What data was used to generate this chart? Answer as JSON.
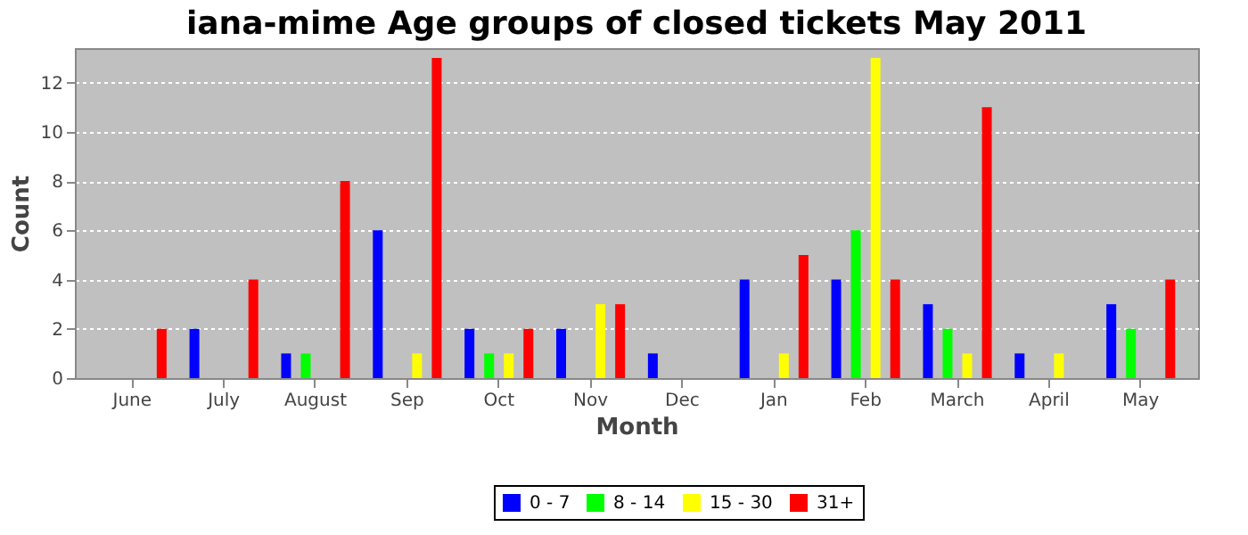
{
  "chart_data": {
    "type": "bar",
    "title": "iana-mime Age groups of closed tickets May 2011",
    "xlabel": "Month",
    "ylabel": "Count",
    "categories": [
      "June",
      "July",
      "August",
      "Sep",
      "Oct",
      "Nov",
      "Dec",
      "Jan",
      "Feb",
      "March",
      "April",
      "May"
    ],
    "series": [
      {
        "name": "0 - 7",
        "color": "#0000ff",
        "values": [
          0,
          2,
          1,
          6,
          2,
          2,
          1,
          4,
          4,
          3,
          1,
          3
        ]
      },
      {
        "name": "8 - 14",
        "color": "#00ff00",
        "values": [
          0,
          0,
          1,
          0,
          1,
          0,
          0,
          0,
          6,
          2,
          0,
          2
        ]
      },
      {
        "name": "15 - 30",
        "color": "#ffff00",
        "values": [
          0,
          0,
          0,
          1,
          1,
          3,
          0,
          1,
          13,
          1,
          1,
          0
        ]
      },
      {
        "name": "31+",
        "color": "#ff0000",
        "values": [
          2,
          4,
          8,
          13,
          2,
          3,
          0,
          5,
          4,
          11,
          0,
          4
        ]
      }
    ],
    "ylim": [
      0,
      13.4
    ],
    "yticks": [
      0,
      2,
      4,
      6,
      8,
      10,
      12
    ],
    "grid": "y",
    "legend": "bottom"
  }
}
